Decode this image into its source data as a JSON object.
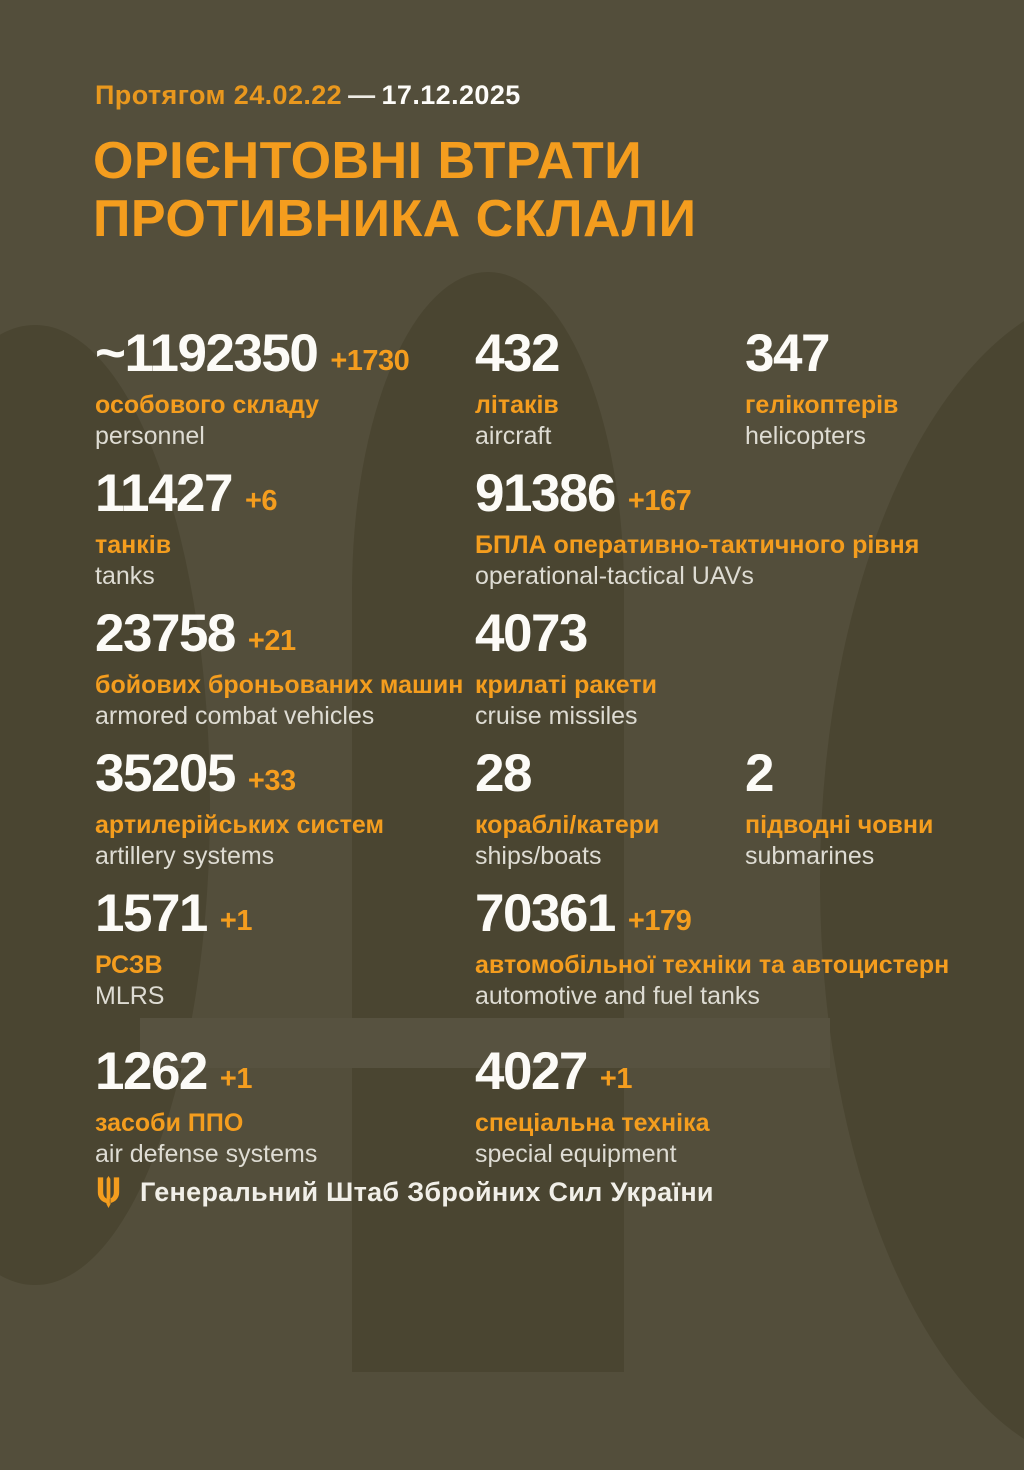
{
  "page": {
    "date_prefix": "Протягом 24.02.22",
    "date_separator": "—",
    "date_current": "17.12.2025",
    "title_line1": "ОРІЄНТОВНІ ВТРАТИ",
    "title_line2": "ПРОТИВНИКА СКЛАЛИ",
    "footer_org": "Генеральний Штаб Збройних Сил України",
    "colors": {
      "background": "#534E3B",
      "watermark_dark": "#4A4531",
      "accent_orange": "#F49D1E",
      "number_white": "#FCFBF7",
      "sublabel_white": "#DEDCD3"
    }
  },
  "stats": [
    {
      "id": "personnel",
      "value": "~1192350",
      "delta": "+1730",
      "label_uk": "особового складу",
      "label_en": "personnel",
      "col": 1,
      "row": 1
    },
    {
      "id": "aircraft",
      "value": "432",
      "delta": "",
      "label_uk": "літаків",
      "label_en": "aircraft",
      "col": 2,
      "row": 1
    },
    {
      "id": "helicopters",
      "value": "347",
      "delta": "",
      "label_uk": "гелікоптерів",
      "label_en": "helicopters",
      "col": 3,
      "row": 1
    },
    {
      "id": "tanks",
      "value": "11427",
      "delta": "+6",
      "label_uk": "танків",
      "label_en": "tanks",
      "col": 1,
      "row": 2
    },
    {
      "id": "uavs",
      "value": "91386",
      "delta": "+167",
      "label_uk": "БПЛА оперативно-тактичного рівня",
      "label_en": "operational-tactical UAVs",
      "col": 2,
      "row": 2
    },
    {
      "id": "armored-combat-vehicles",
      "value": "23758",
      "delta": "+21",
      "label_uk": "бойових броньованих машин",
      "label_en": "armored combat vehicles",
      "col": 1,
      "row": 3
    },
    {
      "id": "cruise-missiles",
      "value": "4073",
      "delta": "",
      "label_uk": "крилаті ракети",
      "label_en": "cruise missiles",
      "col": 2,
      "row": 3
    },
    {
      "id": "artillery-systems",
      "value": "35205",
      "delta": "+33",
      "label_uk": "артилерійських систем",
      "label_en": "artillery systems",
      "col": 1,
      "row": 4
    },
    {
      "id": "ships-boats",
      "value": "28",
      "delta": "",
      "label_uk": "кораблі/катери",
      "label_en": "ships/boats",
      "col": 2,
      "row": 4
    },
    {
      "id": "submarines",
      "value": "2",
      "delta": "",
      "label_uk": "підводні човни",
      "label_en": "submarines",
      "col": 3,
      "row": 4
    },
    {
      "id": "mlrs",
      "value": "1571",
      "delta": "+1",
      "label_uk": "РСЗВ",
      "label_en": "MLRS",
      "col": 1,
      "row": 5
    },
    {
      "id": "automotive-fuel-tanks",
      "value": "70361",
      "delta": "+179",
      "label_uk": "автомобільної техніки та автоцистерн",
      "label_en": "automotive and fuel tanks",
      "col": 2,
      "row": 5
    },
    {
      "id": "air-defense",
      "value": "1262",
      "delta": "+1",
      "label_uk": "засоби ППО",
      "label_en": "air defense systems",
      "col": 1,
      "row": 6
    },
    {
      "id": "special-equipment",
      "value": "4027",
      "delta": "+1",
      "label_uk": "спеціальна техніка",
      "label_en": "special equipment",
      "col": 2,
      "row": 6
    }
  ],
  "chart_data": {
    "type": "table",
    "title": "ОРІЄНТОВНІ ВТРАТИ ПРОТИВНИКА СКЛАЛИ",
    "subtitle": "Протягом 24.02.22 — 17.12.2025",
    "source": "Генеральний Штаб Збройних Сил України",
    "categories": [
      "personnel",
      "aircraft",
      "helicopters",
      "tanks",
      "operational-tactical UAVs",
      "armored combat vehicles",
      "cruise missiles",
      "artillery systems",
      "ships/boats",
      "submarines",
      "MLRS",
      "automotive and fuel tanks",
      "air defense systems",
      "special equipment"
    ],
    "values": [
      1192350,
      432,
      347,
      11427,
      91386,
      23758,
      4073,
      35205,
      28,
      2,
      1571,
      70361,
      1262,
      4027
    ],
    "daily_change": [
      1730,
      0,
      0,
      6,
      167,
      21,
      0,
      33,
      0,
      0,
      1,
      179,
      1,
      1
    ]
  }
}
